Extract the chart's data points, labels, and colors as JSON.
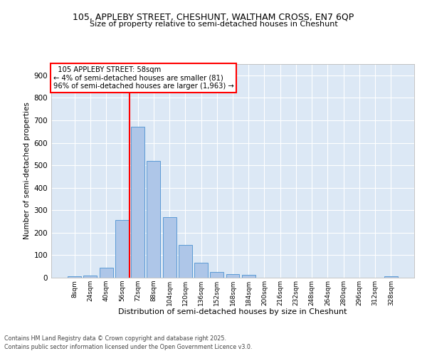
{
  "title_line1": "105, APPLEBY STREET, CHESHUNT, WALTHAM CROSS, EN7 6QP",
  "title_line2": "Size of property relative to semi-detached houses in Cheshunt",
  "xlabel": "Distribution of semi-detached houses by size in Cheshunt",
  "ylabel": "Number of semi-detached properties",
  "bins": [
    "8sqm",
    "24sqm",
    "40sqm",
    "56sqm",
    "72sqm",
    "88sqm",
    "104sqm",
    "120sqm",
    "136sqm",
    "152sqm",
    "168sqm",
    "184sqm",
    "200sqm",
    "216sqm",
    "232sqm",
    "248sqm",
    "264sqm",
    "280sqm",
    "296sqm",
    "312sqm",
    "328sqm"
  ],
  "values": [
    5,
    10,
    45,
    255,
    670,
    520,
    270,
    145,
    65,
    25,
    15,
    12,
    0,
    0,
    0,
    0,
    0,
    0,
    0,
    0,
    5
  ],
  "bar_color": "#aec6e8",
  "bar_edge_color": "#5b9bd5",
  "vline_color": "red",
  "vline_pos": 3.5,
  "annotation_text": "  105 APPLEBY STREET: 58sqm  \n← 4% of semi-detached houses are smaller (81)\n96% of semi-detached houses are larger (1,963) →",
  "ylim": [
    0,
    950
  ],
  "yticks": [
    0,
    100,
    200,
    300,
    400,
    500,
    600,
    700,
    800,
    900
  ],
  "background_color": "#dce8f5",
  "grid_color": "white",
  "footer_line1": "Contains HM Land Registry data © Crown copyright and database right 2025.",
  "footer_line2": "Contains public sector information licensed under the Open Government Licence v3.0."
}
